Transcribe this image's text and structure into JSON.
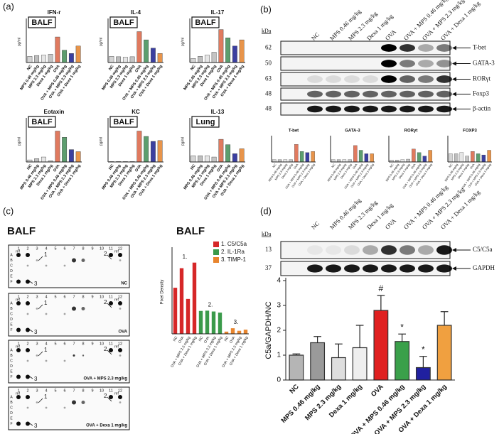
{
  "panel_labels": [
    "(a)",
    "(b)",
    "(c)",
    "(d)"
  ],
  "western_b": {
    "kda_label": "kDa",
    "lanes": [
      "NC",
      "MPS 0.46 mg/kg",
      "MPS 2.3 mg/kg",
      "Dexa 1 mg/kg",
      "OVA",
      "OVA + MPS 0.46 mg/kg",
      "OVA + MPS 2.3 mg/kg",
      "OVA + Dexa 1 mg/kg"
    ],
    "rows": [
      {
        "kda": 62,
        "label": "T-bet"
      },
      {
        "kda": 50,
        "label": "GATA-3"
      },
      {
        "kda": 63,
        "label": "RORγt"
      },
      {
        "kda": 48,
        "label": "Foxp3"
      },
      {
        "kda": 48,
        "label": "β-actin"
      }
    ]
  },
  "western_d": {
    "kda_label": "kDa",
    "lanes": [
      "NC",
      "MPS 0.46 mg/kg",
      "MPS 2.3 mg/kg",
      "Dexa 1 mg/kg",
      "OVA",
      "OVA + MPS 0.46 mg/kg",
      "OVA + MPS 2.3 mg/kg",
      "OVA + Dexa 1 mg/kg"
    ],
    "rows": [
      {
        "kda": 13,
        "label": "C5/C5a"
      },
      {
        "kda": 37,
        "label": "GAPDH"
      }
    ]
  },
  "dot_blot": {
    "title": "BALF",
    "columns": [
      1,
      2,
      3,
      4,
      5,
      6,
      7,
      8,
      9,
      10,
      11,
      12
    ],
    "rows": [
      "A",
      "B",
      "C",
      "D",
      "E",
      "F"
    ],
    "ref": "ref",
    "markers": [
      "1",
      "2",
      "3"
    ],
    "panels": [
      "NC",
      "OVA",
      "OVA + MPS 2.3 mg/kg",
      "OVA + Dexa 1 mg/kg"
    ]
  },
  "chart_data": [
    {
      "type": "bar",
      "title": "IFN-r",
      "tag": "BALF",
      "y_label": "pg/ml",
      "ylim": [
        0,
        100
      ],
      "categories": [
        "NC",
        "MPS 0.46 mg/kg",
        "MPS 2.3 mg/kg",
        "Dexa 1 mg/kg",
        "OVA",
        "OVA + MPS 0.46 mg/kg",
        "OVA + MPS 2.3 mg/kg",
        "OVA + Dexa 1 mg/kg"
      ],
      "values": [
        15,
        17,
        18,
        20,
        62,
        30,
        22,
        40
      ],
      "colors": [
        "#d4d4d4",
        "#bdbdbd",
        "#e6e6e6",
        "#c4c4c4",
        "#e07a5f",
        "#5c9e6e",
        "#3b3fa0",
        "#e8944a"
      ]
    },
    {
      "type": "bar",
      "title": "IL-4",
      "tag": "BALF",
      "y_label": "pg/ml",
      "ylim": [
        0,
        100
      ],
      "categories": [
        "NC",
        "MPS 0.46 mg/kg",
        "MPS 2.3 mg/kg",
        "Dexa 1 mg/kg",
        "OVA",
        "OVA + MPS 0.46 mg/kg",
        "OVA + MPS 2.3 mg/kg",
        "OVA + Dexa 1 mg/kg"
      ],
      "values": [
        15,
        14,
        13,
        14,
        75,
        55,
        35,
        22
      ],
      "colors": [
        "#d4d4d4",
        "#bdbdbd",
        "#e6e6e6",
        "#c4c4c4",
        "#e07a5f",
        "#5c9e6e",
        "#3b3fa0",
        "#e8944a"
      ]
    },
    {
      "type": "bar",
      "title": "IL-17",
      "tag": "BALF",
      "y_label": "pg/ml",
      "ylim": [
        0,
        100
      ],
      "categories": [
        "NC",
        "MPS 0.46 mg/kg",
        "MPS 2.3 mg/kg",
        "Dexa 1 mg/kg",
        "OVA",
        "OVA + MPS 0.46 mg/kg",
        "OVA + MPS 2.3 mg/kg",
        "OVA + Dexa 1 mg/kg"
      ],
      "values": [
        10,
        15,
        18,
        25,
        80,
        60,
        40,
        55
      ],
      "colors": [
        "#d4d4d4",
        "#bdbdbd",
        "#e6e6e6",
        "#c4c4c4",
        "#e07a5f",
        "#5c9e6e",
        "#3b3fa0",
        "#e8944a"
      ]
    },
    {
      "type": "bar",
      "title": "Eotaxin",
      "tag": "BALF",
      "y_label": "pg/ml",
      "ylim": [
        0,
        100
      ],
      "categories": [
        "NC",
        "MPS 0.46 mg/kg",
        "MPS 2.3 mg/kg",
        "Dexa 1 mg/kg",
        "OVA",
        "OVA + MPS 0.46 mg/kg",
        "OVA + MPS 2.3 mg/kg",
        "OVA + Dexa 1 mg/kg"
      ],
      "values": [
        5,
        8,
        12,
        3,
        75,
        60,
        30,
        25
      ],
      "colors": [
        "#d4d4d4",
        "#bdbdbd",
        "#e6e6e6",
        "#c4c4c4",
        "#e07a5f",
        "#5c9e6e",
        "#3b3fa0",
        "#e8944a"
      ]
    },
    {
      "type": "bar",
      "title": "KC",
      "tag": "BALF",
      "y_label": "pg/ml",
      "ylim": [
        0,
        100
      ],
      "categories": [
        "NC",
        "MPS 0.46 mg/kg",
        "MPS 2.3 mg/kg",
        "Dexa 1 mg/kg",
        "OVA",
        "OVA + MPS 0.46 mg/kg",
        "OVA + MPS 2.3 mg/kg",
        "OVA + Dexa 1 mg/kg"
      ],
      "values": [
        1,
        1,
        1,
        1,
        75,
        62,
        50,
        52
      ],
      "colors": [
        "#d4d4d4",
        "#bdbdbd",
        "#e6e6e6",
        "#c4c4c4",
        "#e07a5f",
        "#5c9e6e",
        "#3b3fa0",
        "#e8944a"
      ]
    },
    {
      "type": "bar",
      "title": "IL-13",
      "tag": "Lung",
      "y_label": "pg/ml",
      "ylim": [
        0,
        100
      ],
      "categories": [
        "NC",
        "MPS 0.46 mg/kg",
        "MPS 2.3 mg/kg",
        "Dexa 1 mg/kg",
        "OVA",
        "OVA + MPS 0.46 mg/kg",
        "OVA + MPS 2.3 mg/kg",
        "OVA + Dexa 1 mg/kg"
      ],
      "values": [
        15,
        15,
        15,
        12,
        55,
        42,
        20,
        32
      ],
      "colors": [
        "#d4d4d4",
        "#bdbdbd",
        "#e6e6e6",
        "#c4c4c4",
        "#e07a5f",
        "#5c9e6e",
        "#3b3fa0",
        "#e8944a"
      ]
    },
    {
      "type": "bar",
      "title": "T-bet",
      "ylim": [
        0,
        100
      ],
      "categories": [
        "NC",
        "MPS 0.46 mg/kg",
        "MPS 2.3 mg/kg",
        "Dexa 1 mg/kg",
        "OVA",
        "OVA + MPS 0.46 mg/kg",
        "OVA + MPS 2.3 mg/kg",
        "OVA + Dexa 1 mg/kg"
      ],
      "values": [
        10,
        10,
        10,
        10,
        75,
        45,
        40,
        45
      ],
      "colors": [
        "#d4d4d4",
        "#bdbdbd",
        "#e6e6e6",
        "#c4c4c4",
        "#e07a5f",
        "#5c9e6e",
        "#3b3fa0",
        "#e8944a"
      ]
    },
    {
      "type": "bar",
      "title": "GATA-3",
      "ylim": [
        0,
        100
      ],
      "categories": [
        "NC",
        "MPS 0.46 mg/kg",
        "MPS 2.3 mg/kg",
        "Dexa 1 mg/kg",
        "OVA",
        "OVA + MPS 0.46 mg/kg",
        "OVA + MPS 2.3 mg/kg",
        "OVA + Dexa 1 mg/kg"
      ],
      "values": [
        10,
        10,
        10,
        10,
        70,
        50,
        35,
        35
      ],
      "colors": [
        "#d4d4d4",
        "#bdbdbd",
        "#e6e6e6",
        "#c4c4c4",
        "#e07a5f",
        "#5c9e6e",
        "#3b3fa0",
        "#e8944a"
      ]
    },
    {
      "type": "bar",
      "title": "RORγt",
      "ylim": [
        0,
        100
      ],
      "categories": [
        "NC",
        "MPS 0.46 mg/kg",
        "MPS 2.3 mg/kg",
        "Dexa 1 mg/kg",
        "OVA",
        "OVA + MPS 0.46 mg/kg",
        "OVA + MPS 2.3 mg/kg",
        "OVA + Dexa 1 mg/kg"
      ],
      "values": [
        8,
        8,
        10,
        12,
        55,
        40,
        25,
        50
      ],
      "colors": [
        "#d4d4d4",
        "#bdbdbd",
        "#e6e6e6",
        "#c4c4c4",
        "#e07a5f",
        "#5c9e6e",
        "#3b3fa0",
        "#e8944a"
      ]
    },
    {
      "type": "bar",
      "title": "FOXP3",
      "ylim": [
        0,
        100
      ],
      "categories": [
        "NC",
        "MPS 0.46 mg/kg",
        "MPS 2.3 mg/kg",
        "Dexa 1 mg/kg",
        "OVA",
        "OVA + MPS 0.46 mg/kg",
        "OVA + MPS 2.3 mg/kg",
        "OVA + Dexa 1 mg/kg"
      ],
      "values": [
        35,
        35,
        40,
        25,
        45,
        35,
        30,
        50
      ],
      "colors": [
        "#d4d4d4",
        "#bdbdbd",
        "#e6e6e6",
        "#c4c4c4",
        "#e07a5f",
        "#5c9e6e",
        "#3b3fa0",
        "#e8944a"
      ]
    },
    {
      "type": "bar",
      "title": "BALF",
      "y_label": "Pixel Density",
      "ylim": [
        0,
        3000
      ],
      "categories": [
        "NC",
        "OVA",
        "OVA + MPS 2.3 mg/kg",
        "OVA + Dexa 1 mg/kg"
      ],
      "group_labels": [
        "1.",
        "2.",
        "3."
      ],
      "series": [
        {
          "name": "1. C5/C5a",
          "color": "#d62728",
          "values": [
            1650,
            2350,
            1250,
            2550
          ]
        },
        {
          "name": "2. IL-1Ra",
          "color": "#3a9a4a",
          "values": [
            820,
            830,
            800,
            760
          ]
        },
        {
          "name": "3. TIMP-1",
          "color": "#e8852e",
          "values": [
            80,
            200,
            110,
            150
          ]
        }
      ]
    },
    {
      "type": "bar",
      "y_label": "C5a/GAPDH/NC",
      "ylim": [
        0,
        4
      ],
      "yticks": [
        0,
        1,
        2,
        3,
        4
      ],
      "categories": [
        "NC",
        "MPS 0.46 mg/kg",
        "MPS 2.3 mg/kg",
        "Dexa 1 mg/kg",
        "OVA",
        "OVA + MPS 0.46 mg/kg",
        "OVA + MPS 2.3 mg/kg",
        "OVA + Dexa 1 mg/kg"
      ],
      "values": [
        1.0,
        1.5,
        0.9,
        1.3,
        2.8,
        1.55,
        0.5,
        2.2
      ],
      "errors": [
        0.05,
        0.25,
        0.55,
        0.9,
        0.6,
        0.3,
        0.45,
        0.55
      ],
      "annotations": [
        "#",
        "*",
        "*"
      ],
      "colors": [
        "#b5b5b5",
        "#9a9a9a",
        "#dedede",
        "#efefef",
        "#e02020",
        "#3aa04a",
        "#2020a0",
        "#f0a040"
      ]
    }
  ]
}
